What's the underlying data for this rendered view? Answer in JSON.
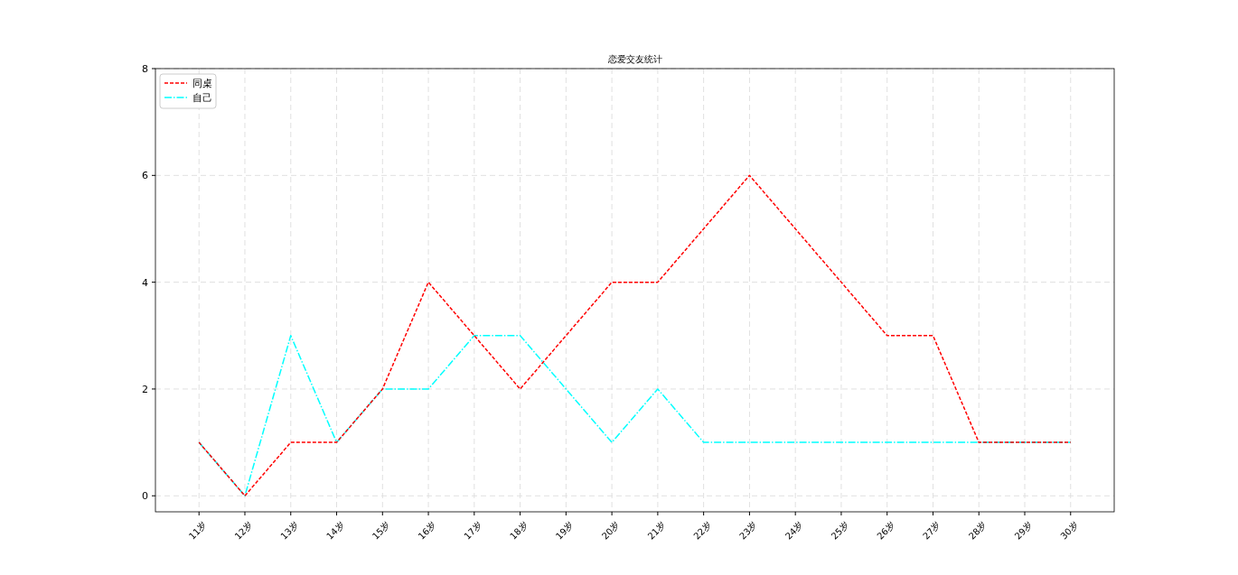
{
  "chart_data": {
    "type": "line",
    "title": "恋爱交友统计",
    "categories": [
      "11岁",
      "12岁",
      "13岁",
      "14岁",
      "15岁",
      "16岁",
      "17岁",
      "18岁",
      "19岁",
      "20岁",
      "21岁",
      "22岁",
      "23岁",
      "24岁",
      "25岁",
      "26岁",
      "27岁",
      "28岁",
      "29岁",
      "30岁"
    ],
    "series": [
      {
        "name": "同桌",
        "color": "#ff0000",
        "line_style": "dashed",
        "values": [
          1,
          0,
          1,
          1,
          2,
          4,
          3,
          2,
          3,
          4,
          4,
          5,
          6,
          5,
          4,
          3,
          3,
          1,
          1,
          1
        ]
      },
      {
        "name": "自己",
        "color": "#00ffff",
        "line_style": "dashdot",
        "values": [
          1,
          0,
          3,
          1,
          2,
          2,
          3,
          3,
          2,
          1,
          2,
          1,
          1,
          1,
          1,
          1,
          1,
          1,
          1,
          1
        ]
      }
    ],
    "ylim": [
      -0.3,
      8
    ],
    "yticks": [
      0,
      2,
      4,
      6,
      8
    ],
    "grid": true,
    "legend": "top left",
    "marker": "none"
  }
}
